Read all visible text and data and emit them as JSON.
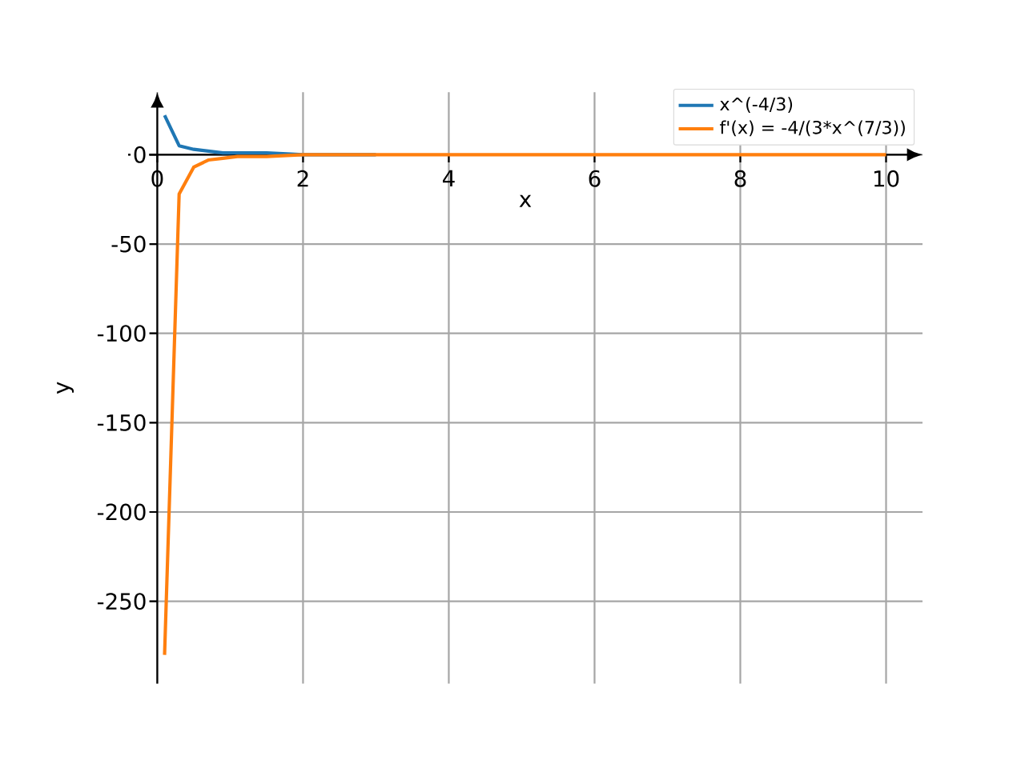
{
  "chart_data": {
    "type": "line",
    "xlabel": "x",
    "ylabel": "y",
    "x": [
      0.1,
      0.3,
      0.5,
      0.7,
      0.9,
      1.1,
      1.5,
      2,
      3,
      4,
      6,
      8,
      10
    ],
    "series": [
      {
        "name": "x^(-4/3)",
        "color": "#1f77b4",
        "values": [
          22,
          5,
          3,
          2,
          1,
          1,
          1,
          0,
          0,
          null,
          null,
          null,
          null
        ]
      },
      {
        "name": "f'(x) = -4/(3*x^(7/3))",
        "color": "#ff7f0e",
        "values": [
          -280,
          -22,
          -7,
          -3,
          -2,
          -1,
          -1,
          0,
          0,
          0,
          0,
          0,
          0
        ]
      }
    ],
    "xlim": [
      -0.4,
      10.5
    ],
    "ylim": [
      -296,
      35
    ],
    "xticks": [
      0,
      2,
      4,
      6,
      8,
      10
    ],
    "yticks": [
      -250,
      -200,
      -150,
      -100,
      -50,
      0
    ],
    "grid": true,
    "legend": "top right",
    "marker": "none",
    "line_style": "solid"
  }
}
